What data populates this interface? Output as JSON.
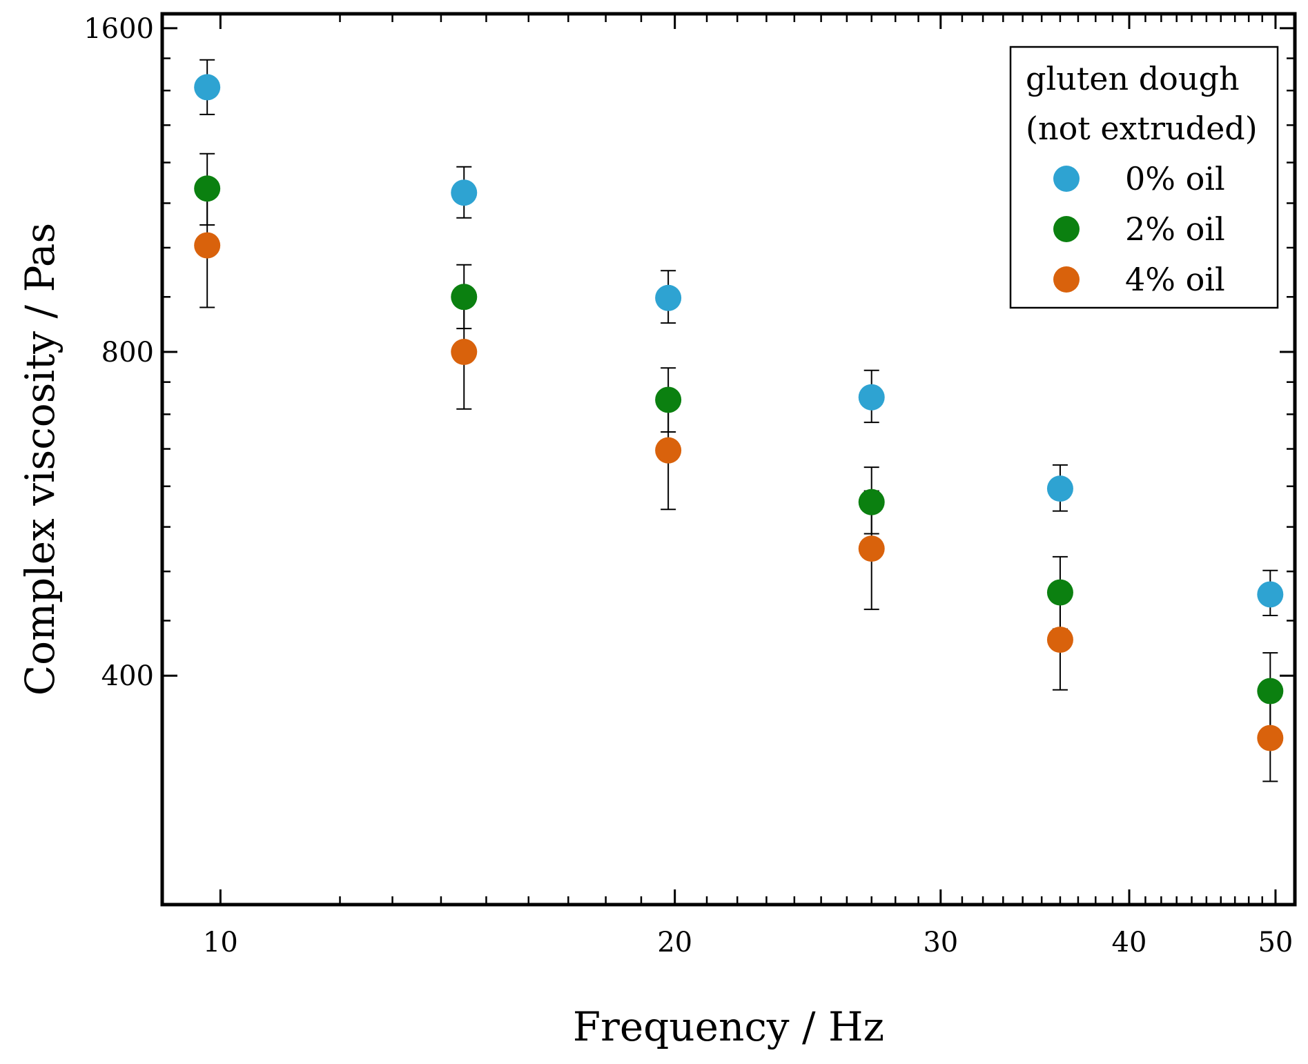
{
  "chart_data": {
    "type": "scatter",
    "xscale": "log",
    "yscale": "log",
    "xlabel": "Frequency / Hz",
    "ylabel": "Complex viscosity / Pas",
    "xlim": [
      9.15,
      51.5
    ],
    "ylim": [
      245,
      1650
    ],
    "xticks_major": [
      10,
      20,
      30,
      40,
      50
    ],
    "xticks_minor": [
      12,
      13,
      14,
      15,
      16,
      17,
      18,
      19,
      21,
      22,
      23,
      24,
      25,
      26,
      27,
      28,
      29,
      31,
      32,
      33,
      34,
      35,
      36,
      37,
      38,
      39,
      41,
      42,
      43,
      44,
      45,
      46,
      47,
      48,
      49,
      50
    ],
    "yticks_major": [
      400,
      800,
      1600
    ],
    "yticks_minor": [
      450,
      500,
      550,
      600,
      650,
      700,
      750,
      900,
      1000,
      1100,
      1200,
      1300,
      1400,
      1500
    ],
    "legend": {
      "title_lines": [
        "gluten dough",
        "(not extruded)"
      ],
      "position": "top-right"
    },
    "x": [
      9.8,
      14.5,
      19.8,
      27.0,
      36.0,
      49.6
    ],
    "series": [
      {
        "name": "0% oil",
        "color": "#2ea3d2",
        "values": [
          1410,
          1125,
          898,
          726,
          597,
          476
        ],
        "err_low": [
          1330,
          1066,
          851,
          688,
          569,
          455
        ],
        "err_high": [
          1495,
          1189,
          952,
          769,
          628,
          501
        ]
      },
      {
        "name": "2% oil",
        "color": "#0b8010",
        "values": [
          1135,
          900,
          722,
          580,
          478,
          387
        ],
        "err_low": [
          1050,
          841,
          674,
          542,
          442,
          353
        ],
        "err_high": [
          1223,
          964,
          773,
          625,
          516,
          420
        ]
      },
      {
        "name": "4% oil",
        "color": "#d9620c",
        "values": [
          1005,
          800,
          648,
          525,
          432,
          350
        ],
        "err_low": [
          880,
          708,
          571,
          461,
          388,
          319
        ],
        "err_high": [
          1130,
          895,
          731,
          594,
          479,
          384
        ]
      }
    ]
  }
}
